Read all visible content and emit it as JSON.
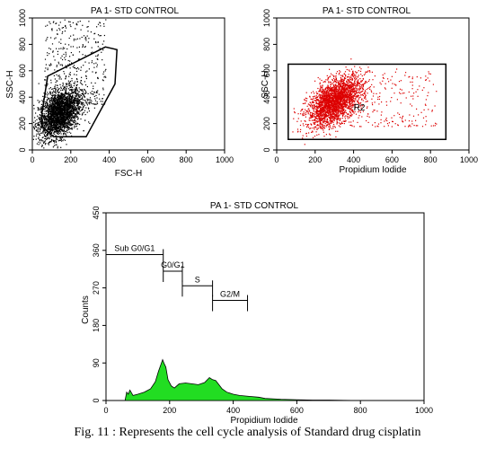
{
  "chart_data": [
    {
      "type": "scatter",
      "title": "PA 1- STD CONTROL",
      "xlabel": "FSC-H",
      "ylabel": "SSC-H",
      "xlim": [
        0,
        1000
      ],
      "ylim": [
        0,
        1000
      ],
      "xticks": [
        "0",
        "200",
        "400",
        "600",
        "800",
        "1000"
      ],
      "yticks": [
        "0",
        "200",
        "400",
        "600",
        "800",
        "1000"
      ],
      "point_color": "#000000",
      "cluster": {
        "center": [
          140,
          280
        ],
        "spread": [
          55,
          85
        ],
        "count": 2600
      },
      "sparse": {
        "x_range": [
          60,
          380
        ],
        "y_range": [
          350,
          1000
        ],
        "count": 420
      },
      "gate_polygon": [
        [
          50,
          280
        ],
        [
          80,
          560
        ],
        [
          380,
          780
        ],
        [
          440,
          760
        ],
        [
          430,
          500
        ],
        [
          280,
          100
        ],
        [
          110,
          100
        ],
        [
          50,
          180
        ]
      ]
    },
    {
      "type": "scatter",
      "title": "PA 1- STD CONTROL",
      "xlabel": "Propidium Iodide",
      "ylabel": "SSC-H",
      "xlim": [
        0,
        1000
      ],
      "ylim": [
        0,
        1000
      ],
      "xticks": [
        "0",
        "200",
        "400",
        "600",
        "800",
        "1000"
      ],
      "yticks": [
        "0",
        "200",
        "400",
        "600",
        "800",
        "1000"
      ],
      "point_color": "#dd0000",
      "cluster": {
        "center": [
          300,
          370
        ],
        "spread": [
          70,
          80
        ],
        "count": 2600
      },
      "sparse": {
        "x_range": [
          380,
          830
        ],
        "y_range": [
          180,
          620
        ],
        "count": 220
      },
      "gate_rect": {
        "x": [
          60,
          880
        ],
        "y": [
          80,
          650
        ],
        "label": "R2"
      }
    },
    {
      "type": "area",
      "title": "PA 1- STD CONTROL",
      "xlabel": "Propidium Iodide",
      "ylabel": "Counts",
      "xlim": [
        0,
        1000
      ],
      "ylim": [
        0,
        450
      ],
      "xticks": [
        "0",
        "200",
        "400",
        "600",
        "800",
        "1000"
      ],
      "yticks": [
        "0",
        "90",
        "180",
        "270",
        "360",
        "450"
      ],
      "fill_color": "#22dd22",
      "x": [
        0,
        60,
        65,
        70,
        75,
        85,
        100,
        120,
        140,
        155,
        165,
        172,
        178,
        182,
        188,
        195,
        205,
        215,
        230,
        250,
        270,
        290,
        310,
        325,
        335,
        345,
        355,
        365,
        380,
        400,
        420,
        450,
        480,
        500,
        550,
        600,
        650,
        700,
        800,
        900,
        1000
      ],
      "values": [
        0,
        0,
        20,
        15,
        25,
        12,
        15,
        20,
        28,
        45,
        70,
        85,
        98,
        90,
        80,
        50,
        35,
        30,
        40,
        42,
        40,
        38,
        43,
        55,
        50,
        48,
        38,
        28,
        20,
        15,
        12,
        10,
        8,
        5,
        3,
        2,
        1,
        1,
        0,
        0,
        0
      ],
      "markers": [
        {
          "label": "Sub G0/G1",
          "x0": 0,
          "x1": 180,
          "y": 350
        },
        {
          "label": "G0/G1",
          "x0": 180,
          "x1": 240,
          "y": 310
        },
        {
          "label": "S",
          "x0": 240,
          "x1": 335,
          "y": 275
        },
        {
          "label": "G2/M",
          "x0": 335,
          "x1": 445,
          "y": 240
        }
      ]
    }
  ],
  "caption": "Fig. 11 : Represents the cell cycle analysis of Standard drug cisplatin"
}
